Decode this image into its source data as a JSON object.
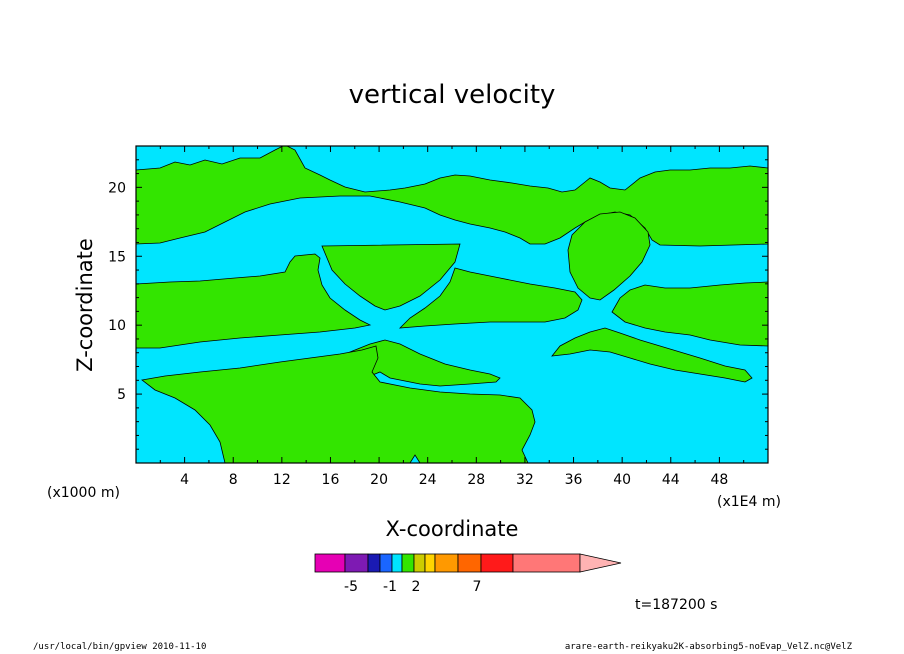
{
  "chart_data": {
    "type": "heatmap",
    "title": "vertical velocity",
    "xlabel": "X-coordinate",
    "ylabel": "Z-coordinate",
    "x_unit_left": "(x1000 m)",
    "x_unit_right": "(x1E4 m)",
    "xlim": [
      0,
      52
    ],
    "ylim": [
      0,
      23
    ],
    "xticks": [
      "4",
      "8",
      "12",
      "16",
      "20",
      "24",
      "28",
      "32",
      "36",
      "40",
      "44",
      "48"
    ],
    "yticks": [
      "5",
      "10",
      "15",
      "20"
    ],
    "time_label": "t=187200 s",
    "colors": {
      "background": "#00e5ff",
      "positive_region": "#33e500",
      "axis": "#000000"
    },
    "colorbar": {
      "segments": [
        "#e600b4",
        "#7e1ab3",
        "#1a1ab3",
        "#1a66ff",
        "#00e5ff",
        "#33e500",
        "#cccc00",
        "#ffd400",
        "#ff9900",
        "#ff6600",
        "#ff1a1a",
        "#ff7777"
      ],
      "arrow_color": "#ffb3b3",
      "labels": [
        "-5",
        "-1",
        "2",
        "7"
      ]
    }
  },
  "footer": {
    "left": "/usr/local/bin/gpview  2010-11-10",
    "right": "arare-earth-reikyaku2K-absorbing5-noEvap_VelZ.nc@VelZ"
  }
}
